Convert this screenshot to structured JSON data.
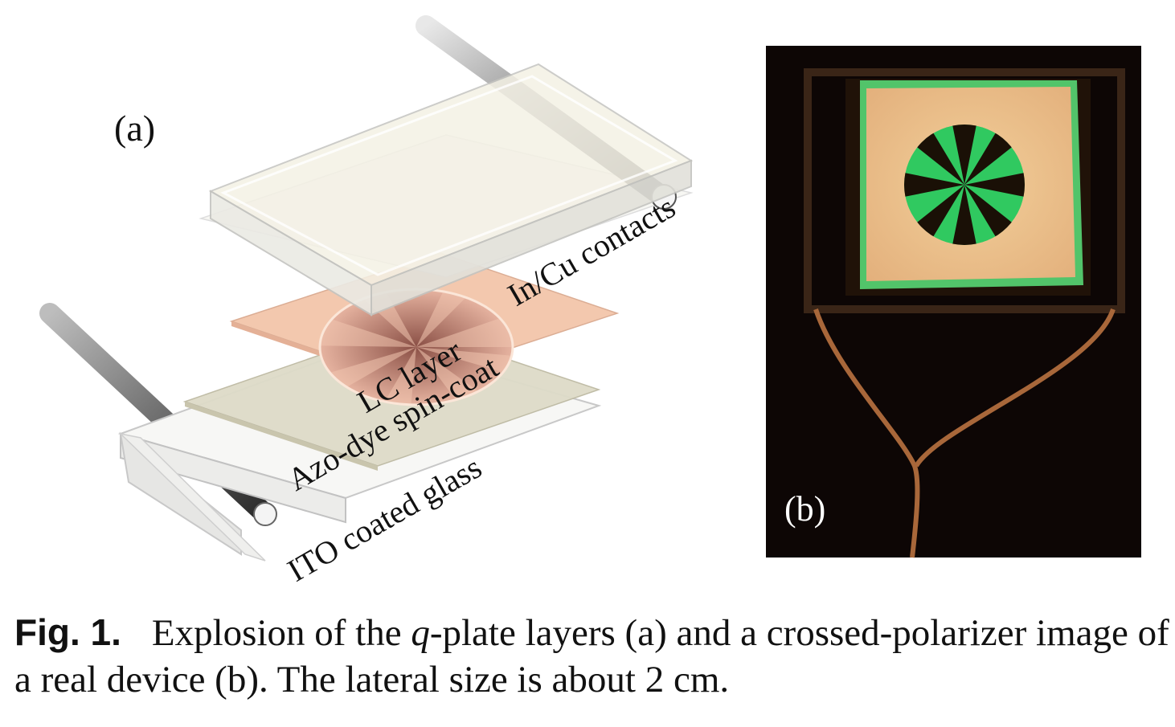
{
  "panel_a": {
    "label": "(a)",
    "layers": {
      "contacts": "In/Cu contacts",
      "lc": "LC layer",
      "azo": "Azo-dye spin-coat",
      "ito": "ITO coated glass"
    }
  },
  "panel_b": {
    "label": "(b)"
  },
  "caption": {
    "label": "Fig. 1.",
    "text_1": "Explosion of the ",
    "italic_q": "q",
    "text_2": "-plate layers (a) and a crossed-polarizer image of a real device (b). The lateral size is about 2 cm."
  }
}
